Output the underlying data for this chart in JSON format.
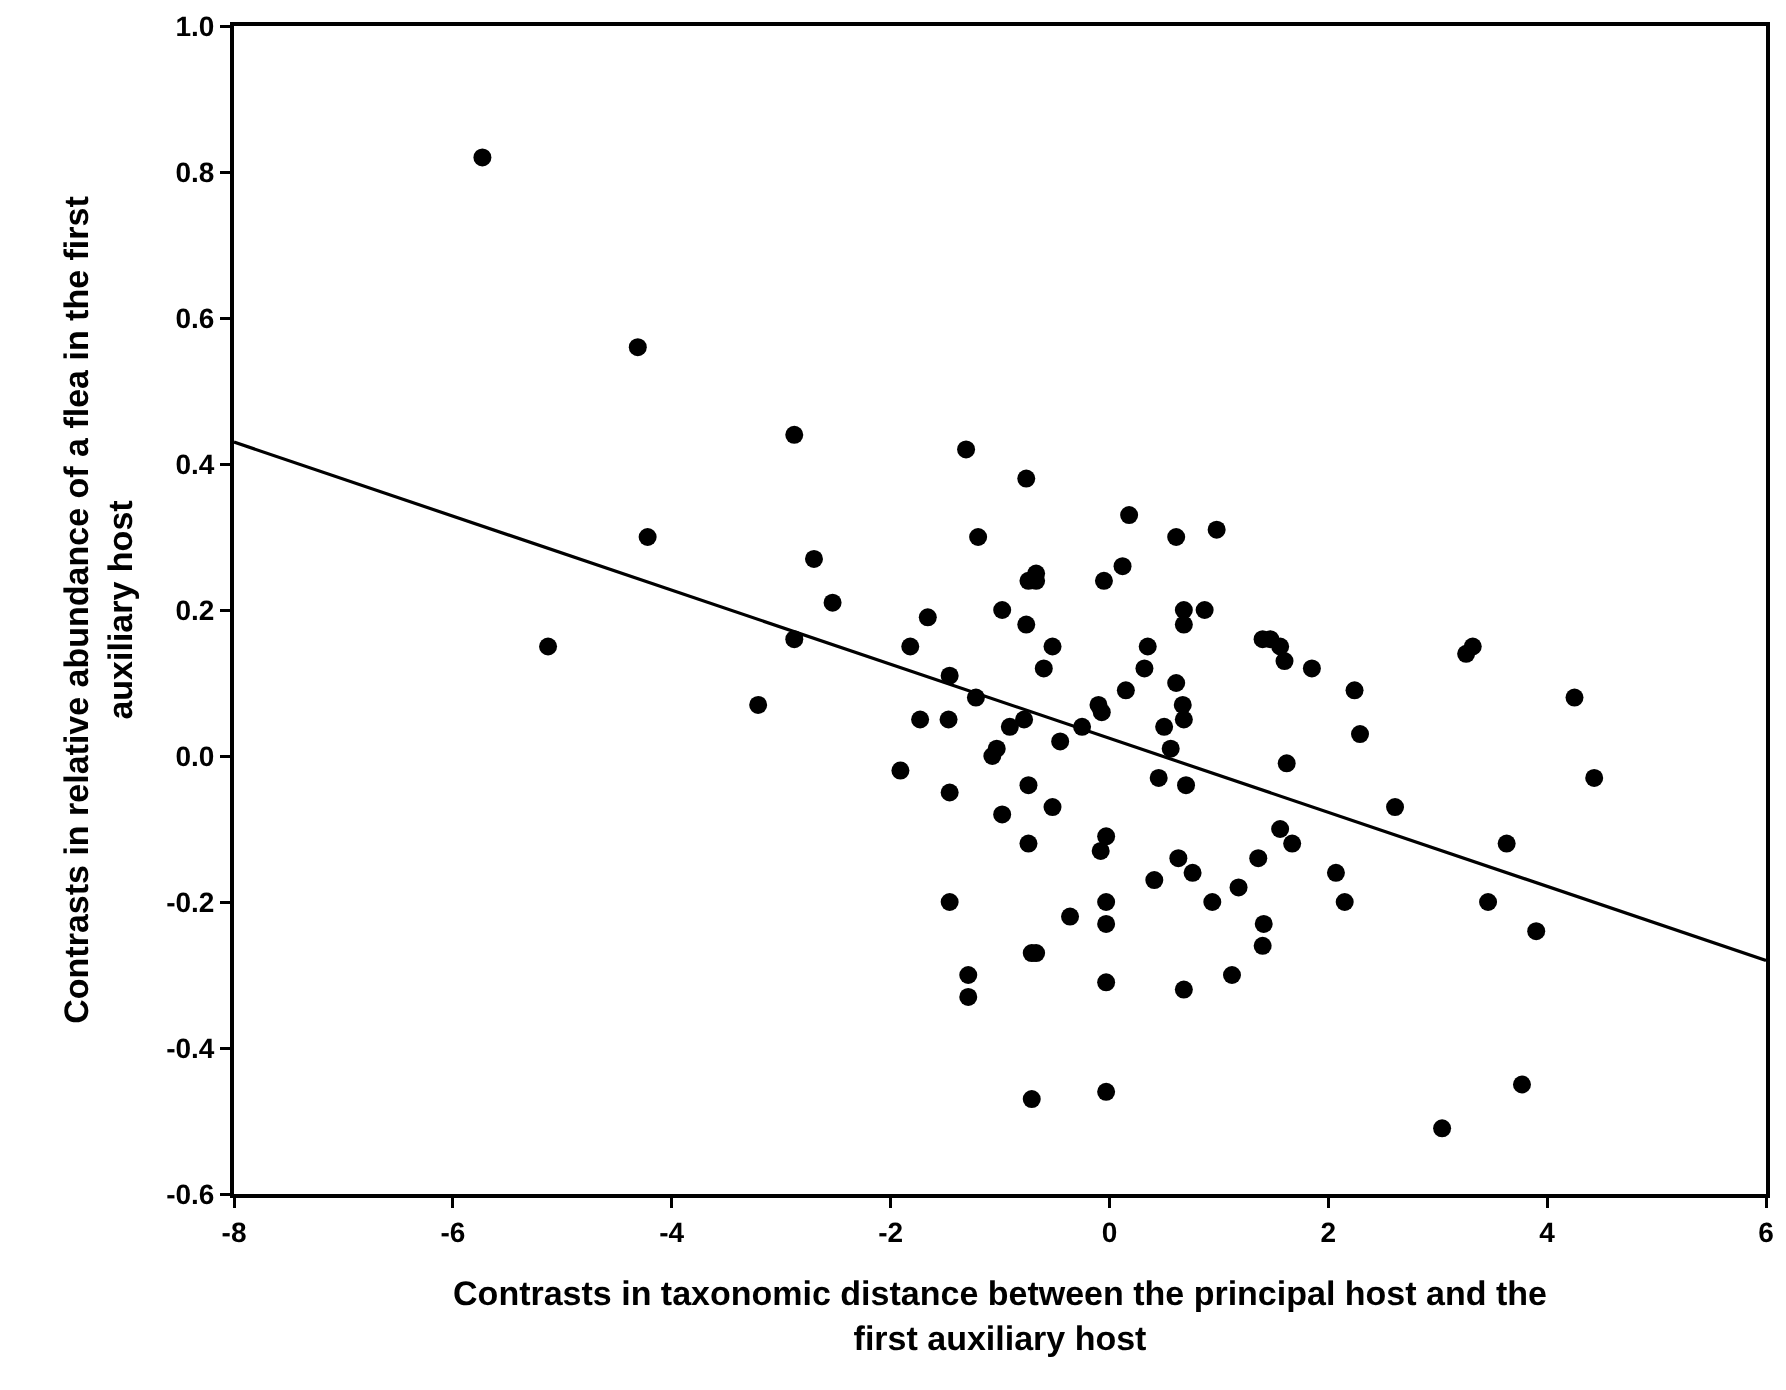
{
  "chart_data": {
    "type": "scatter",
    "xlabel": "Contrasts in taxonomic distance between the principal host and the first auxiliary host",
    "ylabel": "Contrasts in relative abundance of a flea in the first auxiliary host",
    "xlim": [
      -8,
      6
    ],
    "xticks": [
      -8,
      -6,
      -4,
      -2,
      0,
      2,
      4,
      6
    ],
    "ylim": [
      -0.6,
      1.0
    ],
    "yticks": [
      {
        "value": -0.6,
        "label": "-0.6"
      },
      {
        "value": -0.4,
        "label": "-0.4"
      },
      {
        "value": -0.2,
        "label": "-0.2"
      },
      {
        "value": 0,
        "label": "0.0"
      },
      {
        "value": 0.2,
        "label": "0.2"
      },
      {
        "value": 0.4,
        "label": "0.4"
      },
      {
        "value": 0.6,
        "label": "0.6"
      },
      {
        "value": 0.8,
        "label": "0.8"
      },
      {
        "value": 1.0,
        "label": "1.0"
      }
    ],
    "grid": false,
    "series": [
      {
        "marker": "circle",
        "color": "#000000",
        "x": [
          -5.73,
          -4.31,
          -2.88,
          -1.31,
          -0.76,
          -4.22,
          -2.7,
          -1.2,
          -2.53,
          -1.66,
          -0.98,
          -0.76,
          -5.13,
          -2.88,
          -1.82,
          -1.46,
          -1.22,
          -3.21,
          -1.73,
          -1.47,
          -0.91,
          -0.78,
          -1.03,
          -1.07,
          -1.91,
          -1.46,
          -0.98,
          -0.74,
          -1.46,
          -0.71,
          -1.29,
          -1.29,
          -0.71,
          -0.74,
          -0.74,
          0.18,
          0.98,
          0.61,
          -0.67,
          -0.67,
          0.12,
          -0.05,
          0.68,
          0.87,
          0.68,
          -0.52,
          -0.6,
          0.35,
          0.32,
          1.4,
          1.47,
          1.56,
          1.6,
          1.85,
          3.26,
          3.32,
          2.24,
          4.25,
          0.15,
          0.61,
          -0.1,
          -0.07,
          0.67,
          0.68,
          -0.25,
          0.5,
          -0.45,
          0.56,
          2.29,
          1.62,
          0.45,
          0.7,
          4.43,
          -0.52,
          2.61,
          1.56,
          1.67,
          3.63,
          -0.03,
          -0.08,
          0.63,
          0.76,
          1.36,
          2.07,
          0.41,
          1.18,
          2.15,
          3.46,
          0.94,
          -0.03,
          -0.36,
          -0.03,
          1.41,
          3.9,
          -0.67,
          1.4,
          1.12,
          -0.03,
          0.68,
          -0.03,
          3.77,
          3.04
        ],
        "values": [
          0.82,
          0.56,
          0.44,
          0.42,
          0.38,
          0.3,
          0.27,
          0.3,
          0.21,
          0.19,
          0.2,
          0.18,
          0.15,
          0.16,
          0.15,
          0.11,
          0.08,
          0.07,
          0.05,
          0.05,
          0.04,
          0.05,
          0.01,
          0.0,
          -0.02,
          -0.05,
          -0.08,
          -0.12,
          -0.2,
          -0.27,
          -0.3,
          -0.33,
          -0.47,
          -0.04,
          0.24,
          0.33,
          0.31,
          0.3,
          0.25,
          0.24,
          0.26,
          0.24,
          0.2,
          0.2,
          0.18,
          0.15,
          0.12,
          0.15,
          0.12,
          0.16,
          0.16,
          0.15,
          0.13,
          0.12,
          0.14,
          0.15,
          0.09,
          0.08,
          0.09,
          0.1,
          0.07,
          0.06,
          0.07,
          0.05,
          0.04,
          0.04,
          0.02,
          0.01,
          0.03,
          -0.01,
          -0.03,
          -0.04,
          -0.03,
          -0.07,
          -0.07,
          -0.1,
          -0.12,
          -0.12,
          -0.11,
          -0.13,
          -0.14,
          -0.16,
          -0.14,
          -0.16,
          -0.17,
          -0.18,
          -0.2,
          -0.2,
          -0.2,
          -0.2,
          -0.22,
          -0.23,
          -0.23,
          -0.24,
          -0.27,
          -0.26,
          -0.3,
          -0.31,
          -0.32,
          -0.46,
          -0.45,
          -0.51
        ]
      },
      {
        "type": "line",
        "color": "#000000",
        "x": [
          -8,
          6
        ],
        "values": [
          0.43,
          -0.28
        ]
      }
    ]
  }
}
